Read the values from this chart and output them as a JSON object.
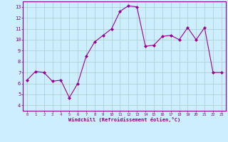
{
  "x": [
    0,
    1,
    2,
    3,
    4,
    5,
    6,
    7,
    8,
    9,
    10,
    11,
    12,
    13,
    14,
    15,
    16,
    17,
    18,
    19,
    20,
    21,
    22,
    23
  ],
  "y": [
    6.3,
    7.1,
    7.0,
    6.2,
    6.3,
    4.7,
    6.0,
    8.5,
    9.8,
    10.4,
    11.0,
    12.6,
    13.1,
    13.0,
    9.4,
    9.5,
    10.3,
    10.4,
    10.0,
    11.1,
    10.0,
    11.1,
    7.0,
    7.0
  ],
  "line_color": "#990099",
  "marker": "D",
  "marker_size": 2,
  "bg_color": "#cceeff",
  "grid_color": "#aacccc",
  "xlabel": "Windchill (Refroidissement éolien,°C)",
  "xlim": [
    -0.5,
    23.5
  ],
  "ylim": [
    3.5,
    13.5
  ],
  "yticks": [
    4,
    5,
    6,
    7,
    8,
    9,
    10,
    11,
    12,
    13
  ],
  "xticks": [
    0,
    1,
    2,
    3,
    4,
    5,
    6,
    7,
    8,
    9,
    10,
    11,
    12,
    13,
    14,
    15,
    16,
    17,
    18,
    19,
    20,
    21,
    22,
    23
  ],
  "tick_color": "#880088",
  "label_color": "#880088",
  "spine_color": "#880088"
}
